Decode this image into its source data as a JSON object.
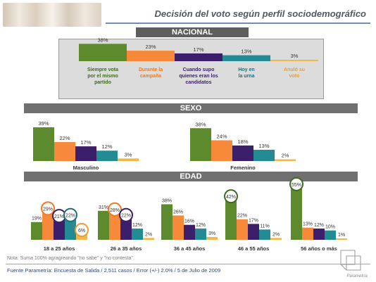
{
  "header": {
    "title": "Decisión del voto  según perfil sociodemográfico"
  },
  "sections": {
    "nacional": "NACIONAL",
    "sexo": "SEXO",
    "edad": "EDAD"
  },
  "colors": {
    "green": "#5e8a2e",
    "orange": "#f7893b",
    "purple": "#3c1f6a",
    "teal": "#238b93",
    "yellow": "#f2b84a",
    "label_green": "#3f6b1f",
    "label_orange": "#f07a22",
    "label_purple": "#3c1f6a",
    "label_teal": "#1f6f7a",
    "label_yellow": "#e8a030"
  },
  "chart_data": [
    {
      "type": "bar",
      "name": "NACIONAL",
      "categories": [
        "Siempre vota por el mismo partido",
        "Durante la campaña",
        "Cuando supo quienes eran los candidatos",
        "Hoy en la urna",
        "Anuló su voto"
      ],
      "values": [
        38,
        23,
        17,
        13,
        3
      ],
      "value_labels": [
        "38%",
        "23%",
        "17%",
        "13%",
        "3%"
      ],
      "category_labels": [
        [
          "Siempre vota",
          "por el mismo",
          "partido"
        ],
        [
          "Durante la",
          "campaña"
        ],
        [
          "Cuando supo",
          "quienes eran los",
          "candidatos"
        ],
        [
          "Hoy en",
          "la urna"
        ],
        [
          "Anuló su",
          "voto"
        ]
      ]
    },
    {
      "type": "bar",
      "name": "SEXO",
      "groups": [
        {
          "label": "Masculino",
          "values": [
            39,
            22,
            17,
            12,
            3
          ],
          "value_labels": [
            "39%",
            "22%",
            "17%",
            "12%",
            "3%"
          ]
        },
        {
          "label": "Femenino",
          "values": [
            38,
            24,
            18,
            13,
            2
          ],
          "value_labels": [
            "38%",
            "24%",
            "18%",
            "13%",
            "2%"
          ]
        }
      ]
    },
    {
      "type": "bar",
      "name": "EDAD",
      "groups": [
        {
          "label": "18 a 25 años",
          "values": [
            19,
            29,
            21,
            22,
            6
          ],
          "value_labels": [
            "19%",
            "29%",
            "21%",
            "22%",
            "6%"
          ],
          "circled": [
            1,
            2,
            3,
            4
          ]
        },
        {
          "label": "26 a 35 años",
          "values": [
            31,
            28,
            22,
            12,
            2
          ],
          "value_labels": [
            "31%",
            "28%",
            "22%",
            "12%",
            "2%"
          ],
          "circled": [
            1,
            2
          ]
        },
        {
          "label": "36 a 45 años",
          "values": [
            38,
            26,
            16,
            12,
            3
          ],
          "value_labels": [
            "38%",
            "26%",
            "16%",
            "12%",
            "3%"
          ],
          "circled": []
        },
        {
          "label": "46 a 55 años",
          "values": [
            42,
            22,
            17,
            11,
            2
          ],
          "value_labels": [
            "42%",
            "22%",
            "17%",
            "11%",
            "2%"
          ],
          "circled": [
            0
          ]
        },
        {
          "label": "56 años o más",
          "values": [
            55,
            13,
            12,
            10,
            1
          ],
          "value_labels": [
            "55%",
            "13%",
            "12%",
            "10%",
            "1%"
          ],
          "circled": [
            0
          ]
        }
      ]
    }
  ],
  "note": "Nota: Suma 100% agragreando \"no sabe\" y \"no contesta\".",
  "footer": "Fuente Parametría: Encuesta de Salida / 2,511 casos / Error (+/-) 2.0% / 5 de Julio de 2009",
  "logo_text": "Parametría"
}
